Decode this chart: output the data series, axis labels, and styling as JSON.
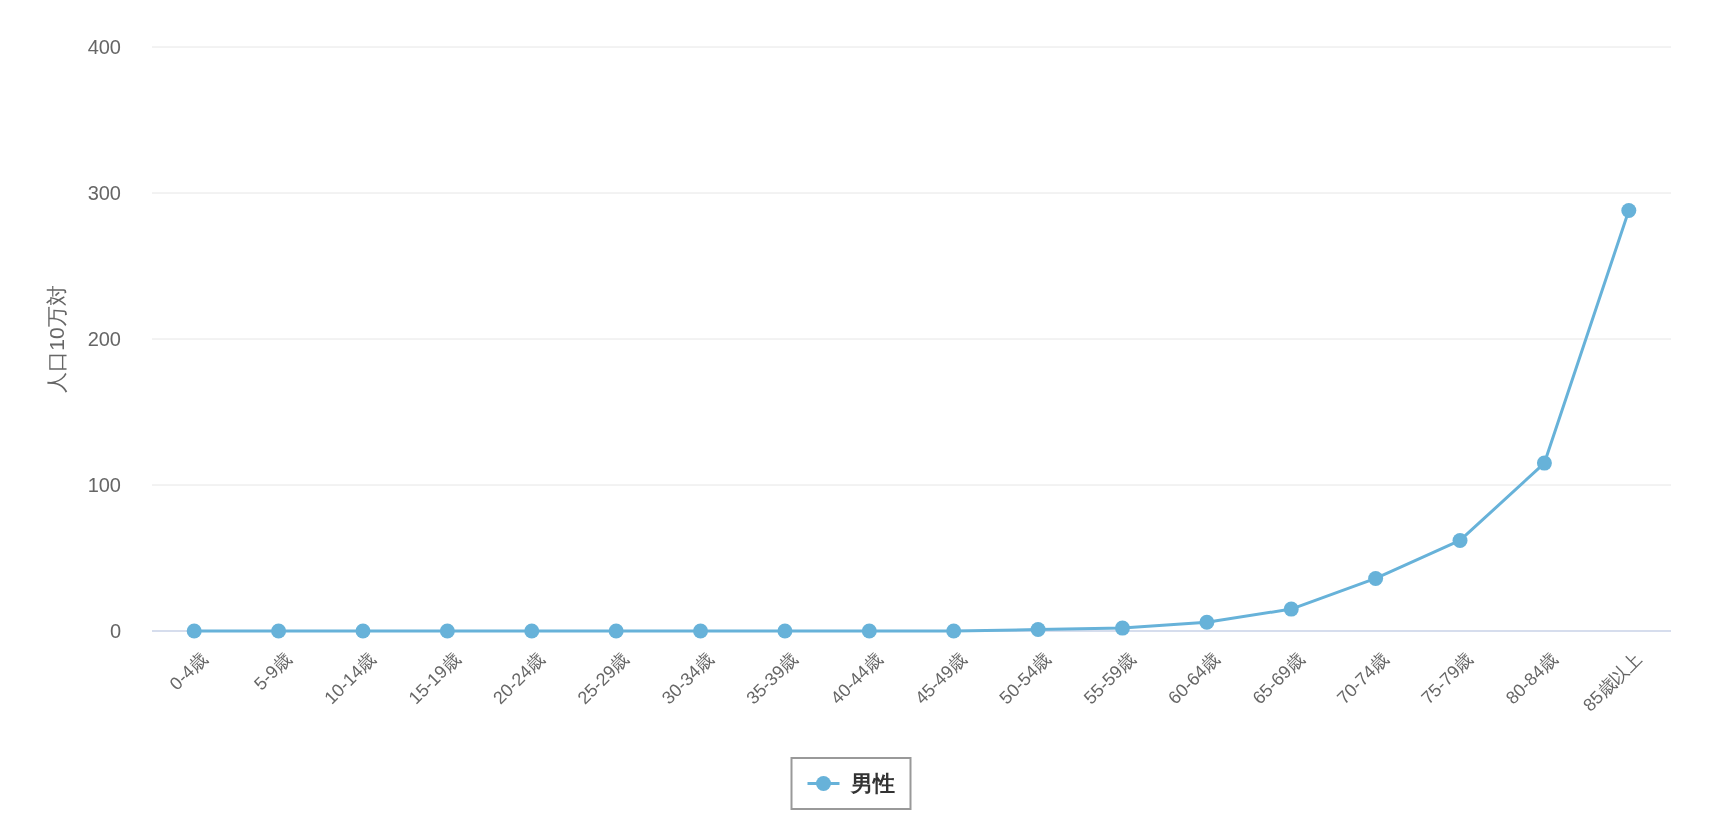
{
  "chart_data": {
    "type": "line",
    "ylabel": "人口10万対",
    "categories": [
      "0-4歳",
      "5-9歳",
      "10-14歳",
      "15-19歳",
      "20-24歳",
      "25-29歳",
      "30-34歳",
      "35-39歳",
      "40-44歳",
      "45-49歳",
      "50-54歳",
      "55-59歳",
      "60-64歳",
      "65-69歳",
      "70-74歳",
      "75-79歳",
      "80-84歳",
      "85歳以上"
    ],
    "series": [
      {
        "name": "男性",
        "color": "#67b2d9",
        "values": [
          0,
          0,
          0,
          0,
          0,
          0,
          0,
          0,
          0,
          0,
          1,
          2,
          6,
          15,
          36,
          62,
          115,
          288
        ]
      }
    ],
    "ylim": [
      0,
      400
    ],
    "yticks": [
      0,
      100,
      200,
      300,
      400
    ],
    "grid": "y",
    "legend": "bottom",
    "marker": "circle",
    "line_style": "solid"
  }
}
